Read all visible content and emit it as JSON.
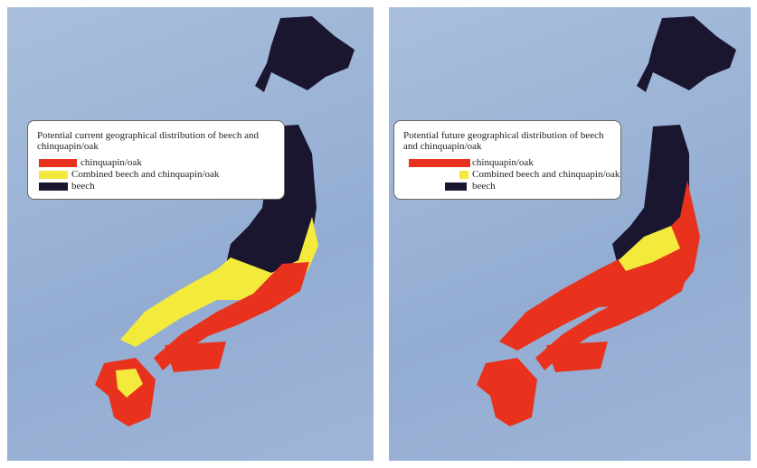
{
  "panels": [
    {
      "legend_title": "Potential current geographical distribution of beech and chinquapin/oak",
      "legend": [
        {
          "label": "chinquapin/oak",
          "color": "#e8321e"
        },
        {
          "label": "Combined beech and chinquapin/oak",
          "color": "#f3ea3c"
        },
        {
          "label": "beech",
          "color": "#1b1630"
        }
      ]
    },
    {
      "legend_title": "Potential future geographical distribution of beech and chinquapin/oak",
      "legend": [
        {
          "label": "chinquapin/oak",
          "color": "#e8321e"
        },
        {
          "label": "Combined beech and chinquapin/oak",
          "color": "#f3ea3c"
        },
        {
          "label": "beech",
          "color": "#1b1630"
        }
      ]
    }
  ]
}
